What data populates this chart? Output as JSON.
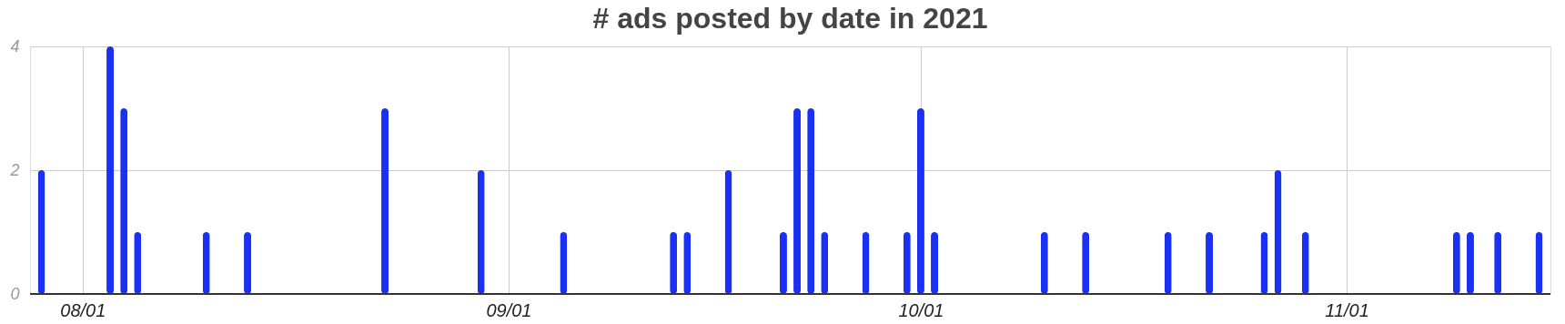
{
  "chart_data": {
    "type": "bar",
    "title": "# ads posted by date in 2021",
    "x": [
      "2021-07-29",
      "2021-08-03",
      "2021-08-04",
      "2021-08-05",
      "2021-08-10",
      "2021-08-13",
      "2021-08-23",
      "2021-08-30",
      "2021-09-05",
      "2021-09-13",
      "2021-09-14",
      "2021-09-17",
      "2021-09-21",
      "2021-09-22",
      "2021-09-23",
      "2021-09-24",
      "2021-09-27",
      "2021-09-30",
      "2021-10-01",
      "2021-10-02",
      "2021-10-10",
      "2021-10-13",
      "2021-10-19",
      "2021-10-22",
      "2021-10-26",
      "2021-10-27",
      "2021-10-29",
      "2021-11-09",
      "2021-11-10",
      "2021-11-12",
      "2021-11-15"
    ],
    "values": [
      2,
      4,
      3,
      1,
      1,
      1,
      3,
      2,
      1,
      1,
      1,
      2,
      1,
      3,
      3,
      1,
      1,
      1,
      3,
      1,
      1,
      1,
      1,
      1,
      1,
      2,
      1,
      1,
      1,
      1,
      1
    ],
    "color": "#1a31f5",
    "xlim": [
      "2021-07-28T12:00",
      "2021-11-15T12:00"
    ],
    "xticks": [
      {
        "value": "2021-08-01",
        "label": "08/01"
      },
      {
        "value": "2021-09-01",
        "label": "09/01"
      },
      {
        "value": "2021-10-01",
        "label": "10/01"
      },
      {
        "value": "2021-11-01",
        "label": "11/01"
      }
    ],
    "ylim": [
      0,
      4
    ],
    "yticks": [
      0,
      2,
      4
    ],
    "grid": true
  }
}
